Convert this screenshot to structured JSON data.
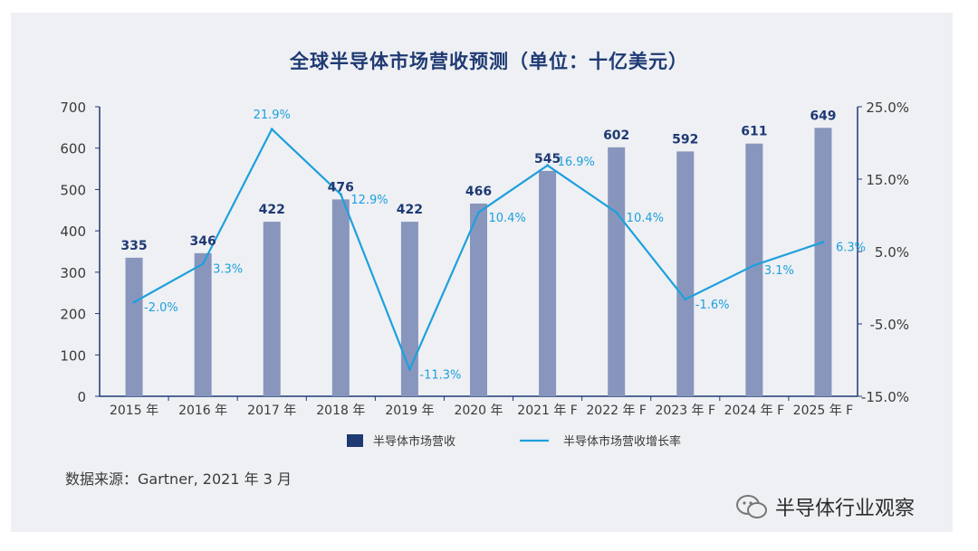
{
  "title": "全球半导体市场营收预测（单位：十亿美元）",
  "source": "数据来源：Gartner, 2021 年 3 月",
  "watermark": "半导体行业观察",
  "colors": {
    "bar": "#8896bd",
    "line": "#1ea0dc",
    "barLabel": "#1f3a73",
    "lineLabel": "#1ea0dc",
    "axis": "#1f3a73",
    "panel": "#eef0f4"
  },
  "chart_data": {
    "type": "bar",
    "title": "全球半导体市场营收预测（单位：十亿美元）",
    "categories": [
      "2015 年",
      "2016 年",
      "2017 年",
      "2018 年",
      "2019 年",
      "2020 年",
      "2021 年 F",
      "2022 年 F",
      "2023 年 F",
      "2024 年 F",
      "2025 年 F"
    ],
    "series": [
      {
        "name": "半导体市场营收",
        "type": "bar",
        "axis": "left",
        "values": [
          335,
          346,
          422,
          476,
          422,
          466,
          545,
          602,
          592,
          611,
          649
        ],
        "labels": [
          "335",
          "346",
          "422",
          "476",
          "422",
          "466",
          "545",
          "602",
          "592",
          "611",
          "649"
        ]
      },
      {
        "name": "半导体市场营收增长率",
        "type": "line",
        "axis": "right",
        "values": [
          -2.0,
          3.3,
          21.9,
          12.9,
          -11.3,
          10.4,
          16.9,
          10.4,
          -1.6,
          3.1,
          6.3
        ],
        "labels": [
          "-2.0%",
          "3.3%",
          "21.9%",
          "12.9%",
          "-11.3%",
          "10.4%",
          "16.9%",
          "10.4%",
          "-1.6%",
          "3.1%",
          "6.3%"
        ]
      }
    ],
    "y_left": {
      "min": 0,
      "max": 700,
      "ticks": [
        "0",
        "100",
        "200",
        "300",
        "400",
        "500",
        "600",
        "700"
      ]
    },
    "y_right": {
      "min": -15,
      "max": 25,
      "ticks": [
        "-15.0%",
        "-5.0%",
        "5.0%",
        "15.0%",
        "25.0%"
      ]
    },
    "grid": false,
    "legend_position": "bottom"
  }
}
